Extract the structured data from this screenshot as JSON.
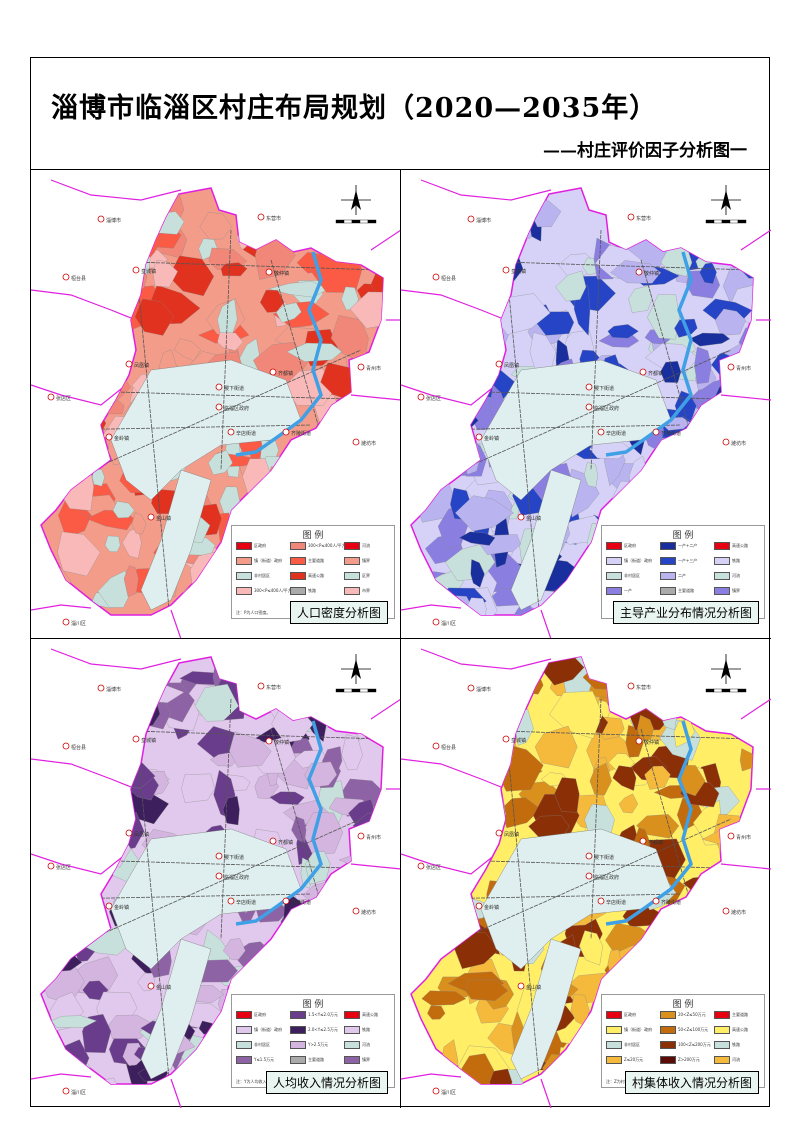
{
  "title": "淄博市临淄区村庄布局规划（2020—2035年）",
  "subtitle": "——村庄评价因子分析图一",
  "map_labels": {
    "north": "北",
    "zibo": "淄博市",
    "dongying": "东营市",
    "huantai": "桓台县",
    "guangrao": "广饶县",
    "zhangdian": "张店区",
    "qingzhou": "青州市",
    "weifang": "潍坊市",
    "zichuan": "淄川区",
    "town_a": "皇城镇",
    "town_b": "朱台镇",
    "town_c": "凤凰镇",
    "town_d": "敬仲镇",
    "town_e": "齐都镇",
    "town_f": "稷下街道",
    "gov": "临淄区政府",
    "town_g": "金岭镇",
    "town_h": "金山镇",
    "town_i": "辛店街道",
    "town_j": "闻韶街道",
    "town_k": "齐陵街道"
  },
  "panels": [
    {
      "title": "人口密度分析图",
      "legend_title": "图 例",
      "note": "注：P为人口密度。",
      "items": [
        "区政府",
        "镇（街道）政府",
        "非村居区",
        "300<P≤400人/平方公里",
        "300<P≤400人/平方公里",
        "主要道路",
        "高速公路",
        "铁路",
        "河流",
        "镇界",
        "区界",
        "市界"
      ],
      "colors": [
        "#e60012",
        "#f39c8a",
        "#c7e0dc",
        "#f9b9b9",
        "#f08778",
        "#fb5a45",
        "#e0321e",
        "#aaaaaa"
      ]
    },
    {
      "title": "主导产业分布情况分析图",
      "legend_title": "图 例",
      "note": "",
      "items": [
        "区政府",
        "镇（街道）政府",
        "非村居区",
        "一产",
        "一产+二产",
        "一产+三产",
        "二产",
        "主要道路",
        "高速公路",
        "铁路",
        "河流",
        "镇界"
      ],
      "colors": [
        "#e60012",
        "#d6d2f7",
        "#c7e0dc",
        "#8a7fe0",
        "#1a2f9e",
        "#2544c6",
        "#b9b4f0",
        "#aaaaaa"
      ]
    },
    {
      "title": "人均收入情况分析图",
      "legend_title": "图 例",
      "note": "注：Y为人均收入。",
      "items": [
        "区政府",
        "镇（街道）政府",
        "非村居区",
        "Y≤1.5万元",
        "1.5<Y≤2.0万元",
        "2.0<Y≤2.5万元",
        "Y>2.5万元",
        "主要道路",
        "高速公路",
        "铁路",
        "河流",
        "镇界"
      ],
      "colors": [
        "#e60012",
        "#e0c9ec",
        "#c7e0dc",
        "#8e63a6",
        "#6a3d8c",
        "#3e1f5e",
        "#d4b5e0",
        "#aaaaaa"
      ]
    },
    {
      "title": "村集体收入情况分析图",
      "legend_title": "图 例",
      "note": "注：Z为村集体收入。",
      "items": [
        "区政府",
        "镇（街道）政府",
        "非村居区",
        "Z≤20万元",
        "20<Z≤50万元",
        "50<Z≤100万元",
        "100<Z≤200万元",
        "Z>200万元",
        "主要道路",
        "高速公路",
        "铁路",
        "河流"
      ],
      "colors": [
        "#e60012",
        "#ffee66",
        "#c7e0dc",
        "#f5b93c",
        "#d9901c",
        "#c36c0e",
        "#8b2f06",
        "#5b0a05"
      ]
    }
  ],
  "colors": {
    "boundary": "#e020e0",
    "river": "#3fa0e6",
    "nonvillage": "#dfeeee",
    "road": "#555555"
  }
}
